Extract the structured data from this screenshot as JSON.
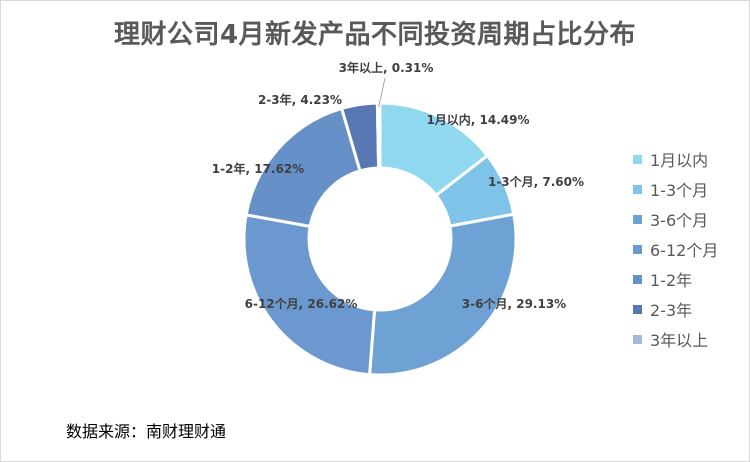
{
  "chart_data": {
    "type": "pie",
    "style": "donut",
    "title": "理财公司4月新发产品不同投资周期占比分布",
    "legend_position": "right",
    "slices": [
      {
        "name": "1月以内",
        "value": 14.49,
        "label": "1月以内, 14.49%",
        "color": "#8fd8f0"
      },
      {
        "name": "1-3个月",
        "value": 7.6,
        "label": "1-3个月, 7.60%",
        "color": "#7fc4e8"
      },
      {
        "name": "3-6个月",
        "value": 29.13,
        "label": "3-6个月, 29.13%",
        "color": "#6fa2d4"
      },
      {
        "name": "6-12个月",
        "value": 26.62,
        "label": "6-12个月, 26.62%",
        "color": "#6a98cf"
      },
      {
        "name": "1-2年",
        "value": 17.62,
        "label": "1-2年, 17.62%",
        "color": "#6590c8"
      },
      {
        "name": "2-3年",
        "value": 4.23,
        "label": "2-3年, 4.23%",
        "color": "#5878b4"
      },
      {
        "name": "3年以上",
        "value": 0.31,
        "label": "3年以上, 0.31%",
        "color": "#a3b9da"
      }
    ]
  },
  "source": "数据来源：南财理财通"
}
